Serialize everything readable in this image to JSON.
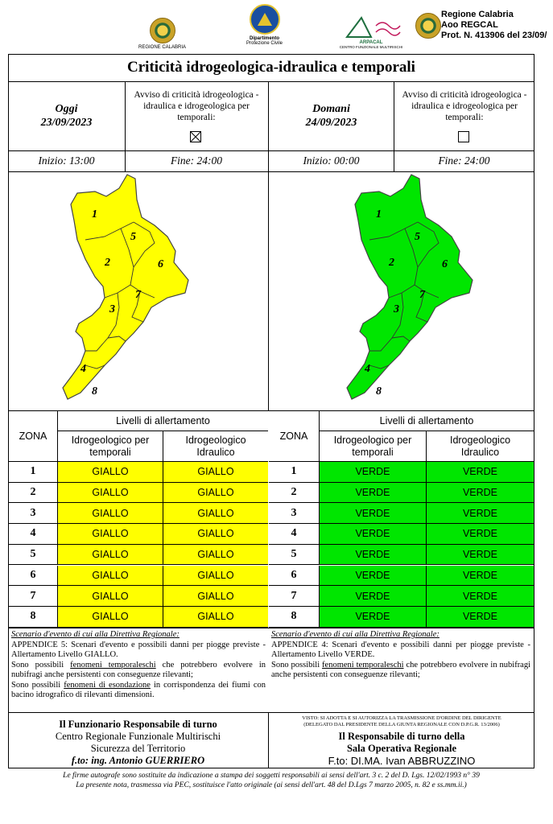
{
  "header": {
    "logo_left_caption": "REGIONE CALABRIA",
    "logo_dpc_caption_1": "Dipartimento",
    "logo_dpc_caption_2": "Protezione Civile",
    "logo_arpacal_caption": "ARPACAL",
    "logo_arpacal_sub": "CENTRO FUNZIONALE MULTIRISCHI",
    "stamp_line1": "Regione Calabria",
    "stamp_line2": "Aoo REGCAL",
    "stamp_line3": "Prot. N. 413906 del 23/09/"
  },
  "title": "Criticità idrogeologica-idraulica e temporali",
  "today": {
    "label": "Oggi",
    "date": "23/09/2023",
    "notice_label": "Avviso di criticità idrogeologica - idraulica e idrogeologica per temporali:",
    "notice_checked": true,
    "start": "Inizio: 13:00",
    "end": "Fine: 24:00",
    "map_color": "#ffff00"
  },
  "tomorrow": {
    "label": "Domani",
    "date": "24/09/2023",
    "notice_label": "Avviso di criticità idrogeologica - idraulica e idrogeologica per temporali:",
    "notice_checked": false,
    "start": "Inizio: 00:00",
    "end": "Fine: 24:00",
    "map_color": "#00e600"
  },
  "zone_numbers": [
    "1",
    "2",
    "3",
    "4",
    "5",
    "6",
    "7",
    "8"
  ],
  "table": {
    "zone_header": "ZONA",
    "levels_header": "Livelli di allertamento",
    "col1": "Idrogeologico per temporali",
    "col2": "Idrogeologico Idraulico",
    "today_rows": [
      {
        "zone": "1",
        "a": "GIALLO",
        "b": "GIALLO"
      },
      {
        "zone": "2",
        "a": "GIALLO",
        "b": "GIALLO"
      },
      {
        "zone": "3",
        "a": "GIALLO",
        "b": "GIALLO"
      },
      {
        "zone": "4",
        "a": "GIALLO",
        "b": "GIALLO"
      },
      {
        "zone": "5",
        "a": "GIALLO",
        "b": "GIALLO"
      },
      {
        "zone": "6",
        "a": "GIALLO",
        "b": "GIALLO"
      },
      {
        "zone": "7",
        "a": "GIALLO",
        "b": "GIALLO"
      },
      {
        "zone": "8",
        "a": "GIALLO",
        "b": "GIALLO"
      }
    ],
    "tomorrow_rows": [
      {
        "zone": "1",
        "a": "VERDE",
        "b": "VERDE"
      },
      {
        "zone": "2",
        "a": "VERDE",
        "b": "VERDE"
      },
      {
        "zone": "3",
        "a": "VERDE",
        "b": "VERDE"
      },
      {
        "zone": "4",
        "a": "VERDE",
        "b": "VERDE"
      },
      {
        "zone": "5",
        "a": "VERDE",
        "b": "VERDE"
      },
      {
        "zone": "6",
        "a": "VERDE",
        "b": "VERDE"
      },
      {
        "zone": "7",
        "a": "VERDE",
        "b": "VERDE"
      },
      {
        "zone": "8",
        "a": "VERDE",
        "b": "VERDE"
      }
    ],
    "yellow": "#ffff00",
    "green": "#00e600"
  },
  "scenario": {
    "heading": "Scenario d'evento di cui alla Direttiva Regionale:",
    "today_lead": "APPENDICE 5: Scenari d'evento e possibili danni per piogge previste - Allertamento Livello GIALLO.",
    "today_p1_pre": "Sono possibili ",
    "today_p1_ul": "fenomeni temporaleschi",
    "today_p1_post": " che potrebbero evolvere in nubifragi anche persistenti con conseguenze rilevanti;",
    "today_p2_pre": "Sono possibili ",
    "today_p2_ul": "fenomeni di esondazione",
    "today_p2_post": " in corrispondenza dei fiumi con bacino idrografico di rilevanti dimensioni.",
    "tomorrow_lead": "APPENDICE 4: Scenari d'evento e possibili danni per piogge previste - Allertamento Livello VERDE.",
    "tomorrow_p1_pre": "Sono possibili ",
    "tomorrow_p1_ul": "fenomeni temporaleschi",
    "tomorrow_p1_post": " che potrebbero evolvere in nubifragi anche persistenti con conseguenze rilevanti;"
  },
  "signatures": {
    "left_title": "Il Funzionario Responsabile di turno",
    "left_line2": "Centro Regionale Funzionale Multirischi",
    "left_line3": "Sicurezza del Territorio",
    "left_line4": "f.to: ing. Antonio GUERRIERO",
    "right_visto1": "VISTO: SI ADOTTA E SI AUTORIZZA LA TRASMISSIONE D'ORDINE DEL DIRIGENTE",
    "right_visto2": "(DELEGATO DAL PRESIDENTE DELLA GIUNTA REGIONALE CON D.P.G.R. 13/2006)",
    "right_title1": "Il Responsabile di turno della",
    "right_title2": "Sala Operativa Regionale",
    "right_line3": "F.to: DI.MA. Ivan ABBRUZZINO"
  },
  "footer": {
    "line1": "Le firme autografe sono sostituite da indicazione a stampa dei soggetti responsabili ai sensi dell'art. 3 c. 2 del D. Lgs. 12/02/1993 n° 39",
    "line2": "La presente nota, trasmessa via PEC, sostituisce l'atto originale (ai sensi dell'art. 48 del D.Lgs 7 marzo 2005, n. 82 e ss.mm.ii.)"
  }
}
